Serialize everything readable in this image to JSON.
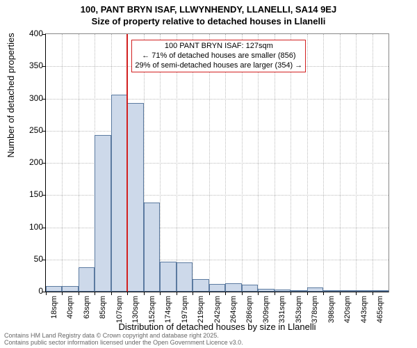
{
  "title_main": "100, PANT BRYN ISAF, LLWYNHENDY, LLANELLI, SA14 9EJ",
  "title_sub": "Size of property relative to detached houses in Llanelli",
  "yaxis_label": "Number of detached properties",
  "xaxis_label": "Distribution of detached houses by size in Llanelli",
  "footer_line1": "Contains HM Land Registry data © Crown copyright and database right 2025.",
  "footer_line2": "Contains public sector information licensed under the Open Government Licence v3.0.",
  "chart": {
    "type": "histogram",
    "background_color": "#ffffff",
    "grid_color": "#bbbbbb",
    "axis_color": "#000000",
    "bar_fill_color": "#cdd9ea",
    "bar_border_color": "#5b7aa0",
    "marker_color": "#d21f1f",
    "anno_border_color": "#d21f1f",
    "ylim": [
      0,
      400
    ],
    "yticks": [
      0,
      50,
      100,
      150,
      200,
      250,
      300,
      350,
      400
    ],
    "xticks_labels": [
      "18sqm",
      "40sqm",
      "63sqm",
      "85sqm",
      "107sqm",
      "130sqm",
      "152sqm",
      "174sqm",
      "197sqm",
      "219sqm",
      "242sqm",
      "264sqm",
      "286sqm",
      "309sqm",
      "331sqm",
      "353sqm",
      "378sqm",
      "398sqm",
      "420sqm",
      "443sqm",
      "465sqm"
    ],
    "bar_values": [
      9,
      9,
      38,
      243,
      306,
      293,
      138,
      46,
      45,
      20,
      12,
      13,
      11,
      4,
      3,
      1,
      6,
      1,
      2,
      2,
      1
    ],
    "marker_x_index": 5,
    "x_label_fontsize": 11,
    "y_label_fontsize": 12,
    "axis_label_fontsize": 13,
    "title_fontsize": 13,
    "anno_fontsize": 11,
    "annotation": {
      "line1": "100 PANT BRYN ISAF: 127sqm",
      "line2": "← 71% of detached houses are smaller (856)",
      "line3": "29% of semi-detached houses are larger (354) →"
    }
  }
}
